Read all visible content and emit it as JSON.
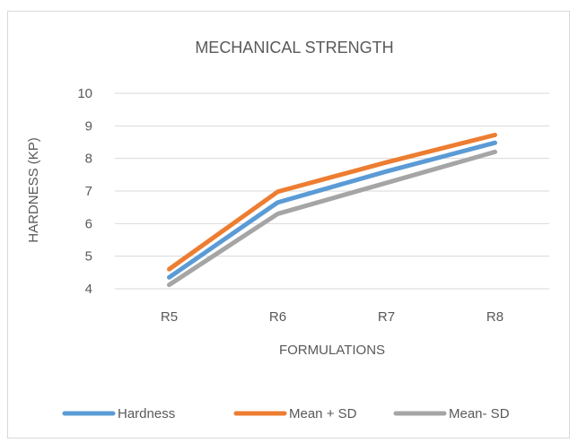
{
  "chart_data": {
    "type": "line",
    "title": "MECHANICAL STRENGTH",
    "xlabel": "FORMULATIONS",
    "ylabel": "HARDNESS (KP)",
    "categories": [
      "R5",
      "R6",
      "R7",
      "R8"
    ],
    "ylim": [
      4,
      10
    ],
    "yticks": [
      4,
      5,
      6,
      7,
      8,
      9,
      10
    ],
    "grid": true,
    "legend_position": "bottom",
    "series": [
      {
        "name": "Hardness",
        "values": [
          4.35,
          6.65,
          7.6,
          8.48
        ],
        "color": "#5b9bd5"
      },
      {
        "name": "Mean + SD",
        "values": [
          4.6,
          6.98,
          7.88,
          8.72
        ],
        "color": "#ed7d31"
      },
      {
        "name": "Mean- SD",
        "values": [
          4.12,
          6.3,
          7.25,
          8.2
        ],
        "color": "#a5a5a5"
      }
    ]
  }
}
